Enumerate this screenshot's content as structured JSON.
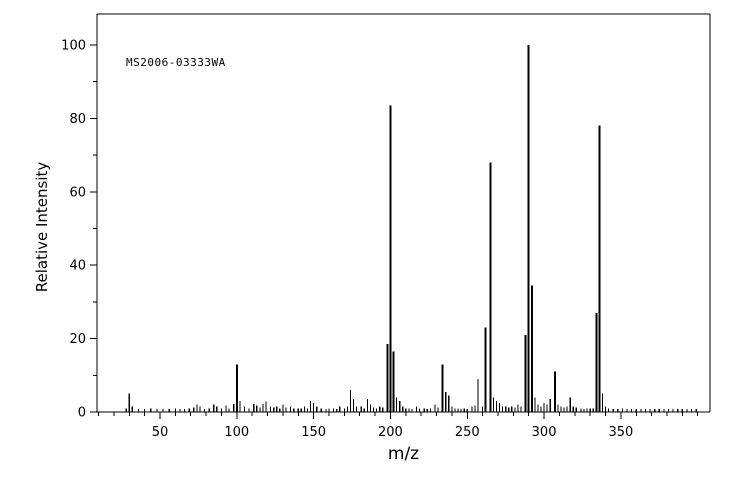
{
  "chart_data": {
    "type": "bar",
    "variant": "mass-spectrum",
    "title": "",
    "annotation": "MS2006-03333WA",
    "xlabel": "m/z",
    "ylabel": "Relative Intensity",
    "line_color": "#000000",
    "background": "#ffffff",
    "grid": false,
    "legend": false,
    "x_axis": {
      "range": [
        9,
        408
      ],
      "ticks": [
        50,
        100,
        150,
        200,
        250,
        300,
        350
      ],
      "minor_step": 10,
      "minor_from": 10,
      "minor_to": 400,
      "major_step": 50
    },
    "y_axis": {
      "range": [
        0,
        100
      ],
      "ticks": [
        0,
        20,
        40,
        60,
        80,
        100
      ],
      "minor_step": 10
    },
    "peaks": [
      [
        28,
        1
      ],
      [
        30,
        5
      ],
      [
        32,
        1.5
      ],
      [
        36,
        0.8
      ],
      [
        40,
        0.8
      ],
      [
        44,
        1
      ],
      [
        48,
        0.8
      ],
      [
        52,
        0.8
      ],
      [
        56,
        0.8
      ],
      [
        60,
        1
      ],
      [
        63,
        0.8
      ],
      [
        66,
        0.8
      ],
      [
        69,
        1
      ],
      [
        72,
        1.2
      ],
      [
        74,
        2
      ],
      [
        76,
        1.5
      ],
      [
        79,
        0.8
      ],
      [
        82,
        1
      ],
      [
        85,
        2
      ],
      [
        87,
        1.5
      ],
      [
        90,
        1
      ],
      [
        93,
        1.8
      ],
      [
        95,
        1
      ],
      [
        98,
        2.2
      ],
      [
        100,
        13
      ],
      [
        102,
        3
      ],
      [
        105,
        1.5
      ],
      [
        108,
        1
      ],
      [
        111,
        2.2
      ],
      [
        113,
        1.8
      ],
      [
        115,
        1.2
      ],
      [
        117,
        2.2
      ],
      [
        119,
        2.8
      ],
      [
        122,
        1.5
      ],
      [
        124,
        1.2
      ],
      [
        126,
        1.5
      ],
      [
        128,
        1
      ],
      [
        130,
        2
      ],
      [
        132,
        1.2
      ],
      [
        135,
        1.5
      ],
      [
        137,
        1
      ],
      [
        140,
        1
      ],
      [
        142,
        1
      ],
      [
        144,
        1.5
      ],
      [
        146,
        1
      ],
      [
        148,
        3
      ],
      [
        150,
        2.5
      ],
      [
        152,
        1.5
      ],
      [
        155,
        1
      ],
      [
        158,
        0.8
      ],
      [
        160,
        1
      ],
      [
        163,
        1
      ],
      [
        165,
        0.8
      ],
      [
        167,
        1.5
      ],
      [
        170,
        1
      ],
      [
        172,
        1.5
      ],
      [
        174,
        6
      ],
      [
        176,
        3.5
      ],
      [
        178,
        1.5
      ],
      [
        181,
        1.5
      ],
      [
        183,
        1
      ],
      [
        185,
        3.5
      ],
      [
        187,
        2
      ],
      [
        189,
        1.2
      ],
      [
        191,
        1
      ],
      [
        193,
        1.5
      ],
      [
        195,
        1.2
      ],
      [
        198,
        18.5
      ],
      [
        200,
        83.5
      ],
      [
        202,
        16.5
      ],
      [
        204,
        4
      ],
      [
        206,
        3
      ],
      [
        208,
        1.5
      ],
      [
        210,
        1
      ],
      [
        212,
        1
      ],
      [
        214,
        0.8
      ],
      [
        217,
        1.5
      ],
      [
        219,
        1
      ],
      [
        222,
        1
      ],
      [
        224,
        0.8
      ],
      [
        226,
        1
      ],
      [
        229,
        2
      ],
      [
        231,
        1.2
      ],
      [
        234,
        13
      ],
      [
        236,
        5.5
      ],
      [
        238,
        4.5
      ],
      [
        240,
        1.5
      ],
      [
        242,
        1
      ],
      [
        244,
        1
      ],
      [
        246,
        0.8
      ],
      [
        248,
        1
      ],
      [
        250,
        0.8
      ],
      [
        253,
        1.5
      ],
      [
        255,
        1.8
      ],
      [
        257,
        9
      ],
      [
        260,
        1.5
      ],
      [
        262,
        23
      ],
      [
        265,
        68
      ],
      [
        267,
        4
      ],
      [
        269,
        3
      ],
      [
        271,
        2.5
      ],
      [
        273,
        1.5
      ],
      [
        275,
        1.5
      ],
      [
        277,
        1.2
      ],
      [
        279,
        1.5
      ],
      [
        281,
        1.2
      ],
      [
        283,
        2
      ],
      [
        285,
        1.5
      ],
      [
        288,
        21
      ],
      [
        290,
        100
      ],
      [
        292,
        34.5
      ],
      [
        294,
        4
      ],
      [
        296,
        2
      ],
      [
        298,
        1.5
      ],
      [
        300,
        2.5
      ],
      [
        302,
        2
      ],
      [
        304,
        3.5
      ],
      [
        307,
        11
      ],
      [
        309,
        2
      ],
      [
        311,
        1.5
      ],
      [
        313,
        1.2
      ],
      [
        315,
        1.5
      ],
      [
        317,
        4
      ],
      [
        319,
        1.5
      ],
      [
        321,
        1.2
      ],
      [
        324,
        1
      ],
      [
        326,
        0.8
      ],
      [
        328,
        1
      ],
      [
        330,
        1
      ],
      [
        332,
        1
      ],
      [
        334,
        27
      ],
      [
        336,
        78
      ],
      [
        338,
        5
      ],
      [
        340,
        1.5
      ],
      [
        342,
        1
      ],
      [
        345,
        0.8
      ],
      [
        348,
        0.8
      ],
      [
        351,
        1
      ],
      [
        354,
        0.8
      ],
      [
        357,
        0.8
      ],
      [
        360,
        0.8
      ],
      [
        363,
        0.8
      ],
      [
        366,
        0.8
      ],
      [
        369,
        0.8
      ],
      [
        372,
        0.8
      ],
      [
        375,
        0.8
      ],
      [
        378,
        0.8
      ],
      [
        381,
        0.8
      ],
      [
        384,
        0.8
      ],
      [
        387,
        0.8
      ],
      [
        390,
        0.8
      ],
      [
        393,
        0.8
      ],
      [
        396,
        0.8
      ],
      [
        399,
        0.8
      ]
    ]
  }
}
